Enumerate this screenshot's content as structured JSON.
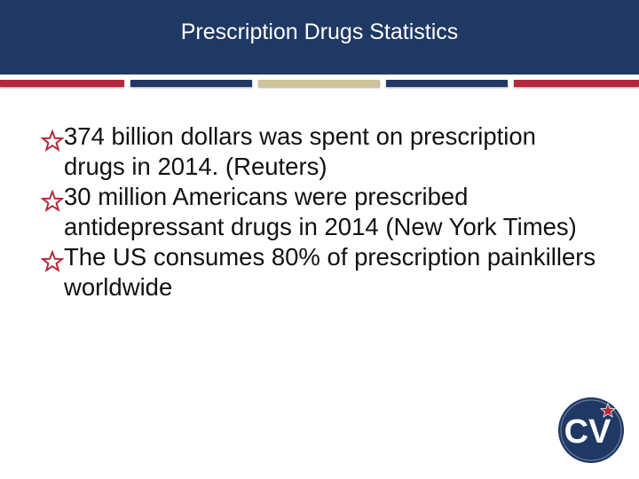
{
  "slide": {
    "title": "Prescription Drugs Statistics",
    "bullets": [
      "374 billion dollars was spent on prescription drugs in 2014. (Reuters)",
      "30 million Americans were prescribed antidepressant drugs in 2014 (New York Times)",
      "The US consumes 80% of prescription painkillers worldwide"
    ],
    "bullet_icon": "star-outline-icon",
    "logo": {
      "icon": "cv-logo-icon",
      "text": "CV"
    }
  },
  "colors": {
    "header_bg": "#1f3864",
    "title_text": "#ffffff",
    "stripe_red": "#b5273a",
    "stripe_navy": "#1f3864",
    "stripe_tan": "#cfc39b",
    "bullet_star": "#b5273a",
    "body_text": "#111111",
    "logo_bg": "#1f3864"
  }
}
